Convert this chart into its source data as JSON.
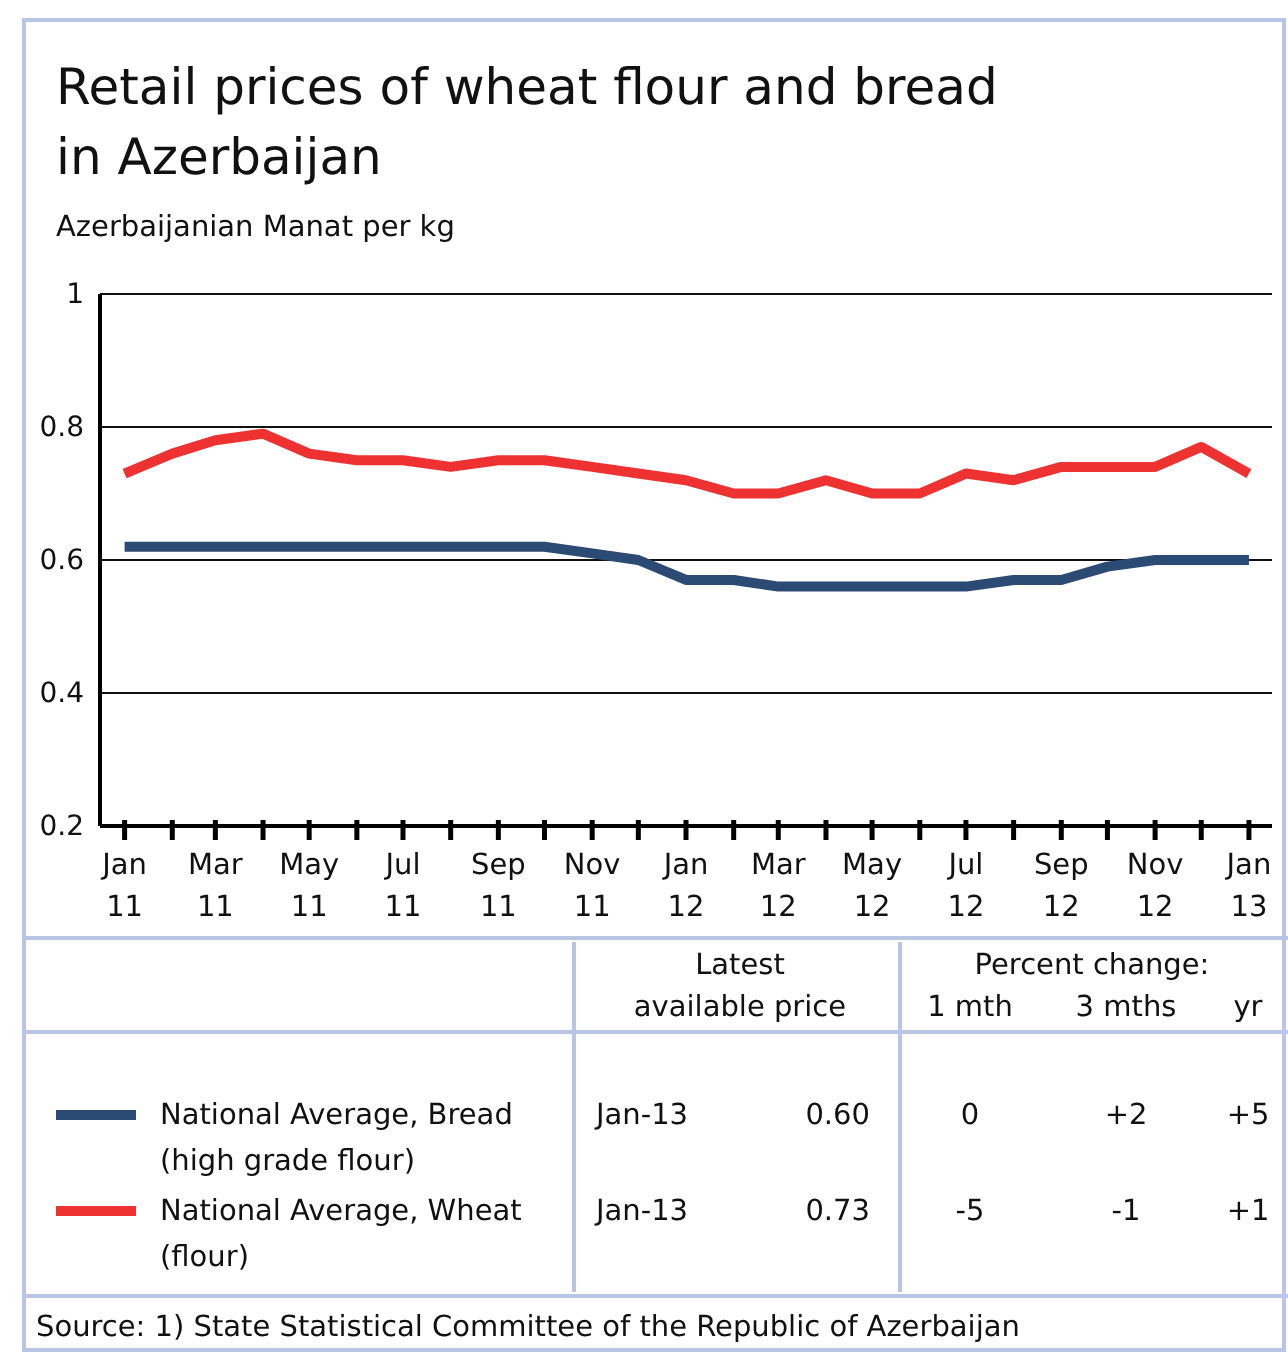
{
  "chart_data": {
    "type": "line",
    "title": "Retail prices of wheat flour and bread in Azerbaijan",
    "ylabel": "Azerbaijanian Manat per kg",
    "x": [
      "2011-01",
      "2011-02",
      "2011-03",
      "2011-04",
      "2011-05",
      "2011-06",
      "2011-07",
      "2011-08",
      "2011-09",
      "2011-10",
      "2011-11",
      "2011-12",
      "2012-01",
      "2012-02",
      "2012-03",
      "2012-04",
      "2012-05",
      "2012-06",
      "2012-07",
      "2012-08",
      "2012-09",
      "2012-10",
      "2012-11",
      "2012-12",
      "2013-01"
    ],
    "series": [
      {
        "name": "National Average, Bread (high grade flour)",
        "color": "#2b4a74",
        "values": [
          0.62,
          0.62,
          0.62,
          0.62,
          0.62,
          0.62,
          0.62,
          0.62,
          0.62,
          0.62,
          0.61,
          0.6,
          0.57,
          0.57,
          0.56,
          0.56,
          0.56,
          0.56,
          0.56,
          0.57,
          0.57,
          0.59,
          0.6,
          0.6,
          0.6
        ]
      },
      {
        "name": "National Average, Wheat (flour)",
        "color": "#ee3231",
        "values": [
          0.73,
          0.76,
          0.78,
          0.79,
          0.76,
          0.75,
          0.75,
          0.74,
          0.75,
          0.75,
          0.74,
          0.73,
          0.72,
          0.7,
          0.7,
          0.72,
          0.7,
          0.7,
          0.73,
          0.72,
          0.74,
          0.74,
          0.74,
          0.77,
          0.73
        ]
      }
    ],
    "xlim": [
      "2010-12-16",
      "2013-01-16"
    ],
    "xticks": [
      {
        "value": "2011-01",
        "label": "Jan 11"
      },
      {
        "value": "2011-02",
        "label": null
      },
      {
        "value": "2011-03",
        "label": "Mar 11"
      },
      {
        "value": "2011-04",
        "label": null
      },
      {
        "value": "2011-05",
        "label": "May 11"
      },
      {
        "value": "2011-06",
        "label": null
      },
      {
        "value": "2011-07",
        "label": "Jul 11"
      },
      {
        "value": "2011-08",
        "label": null
      },
      {
        "value": "2011-09",
        "label": "Sep 11"
      },
      {
        "value": "2011-10",
        "label": null
      },
      {
        "value": "2011-11",
        "label": "Nov 11"
      },
      {
        "value": "2011-12",
        "label": null
      },
      {
        "value": "2012-01",
        "label": "Jan 12"
      },
      {
        "value": "2012-02",
        "label": null
      },
      {
        "value": "2012-03",
        "label": "Mar 12"
      },
      {
        "value": "2012-04",
        "label": null
      },
      {
        "value": "2012-05",
        "label": "May 12"
      },
      {
        "value": "2012-06",
        "label": null
      },
      {
        "value": "2012-07",
        "label": "Jul 12"
      },
      {
        "value": "2012-08",
        "label": null
      },
      {
        "value": "2012-09",
        "label": "Sep 12"
      },
      {
        "value": "2012-10",
        "label": null
      },
      {
        "value": "2012-11",
        "label": "Nov 12"
      },
      {
        "value": "2012-12",
        "label": null
      },
      {
        "value": "2013-01",
        "label": "Jan 13"
      }
    ],
    "ylim": [
      0.2,
      1
    ],
    "yticks": [
      0.2,
      0.4,
      0.6,
      0.8,
      1
    ],
    "grid": "y",
    "legend": "bottom",
    "marker": "none",
    "line_style": "solid",
    "annotations": [
      "Latest",
      "available price",
      "Percent change:",
      "1 mth",
      "3 mths",
      "yr",
      "Jan-13",
      "0.60",
      "0",
      "+2",
      "+5",
      "Jan-13",
      "0.73",
      "-5",
      "-1",
      "+1",
      "Source: 1) State Statistical Committee of the Republic of Azerbaijan"
    ]
  }
}
